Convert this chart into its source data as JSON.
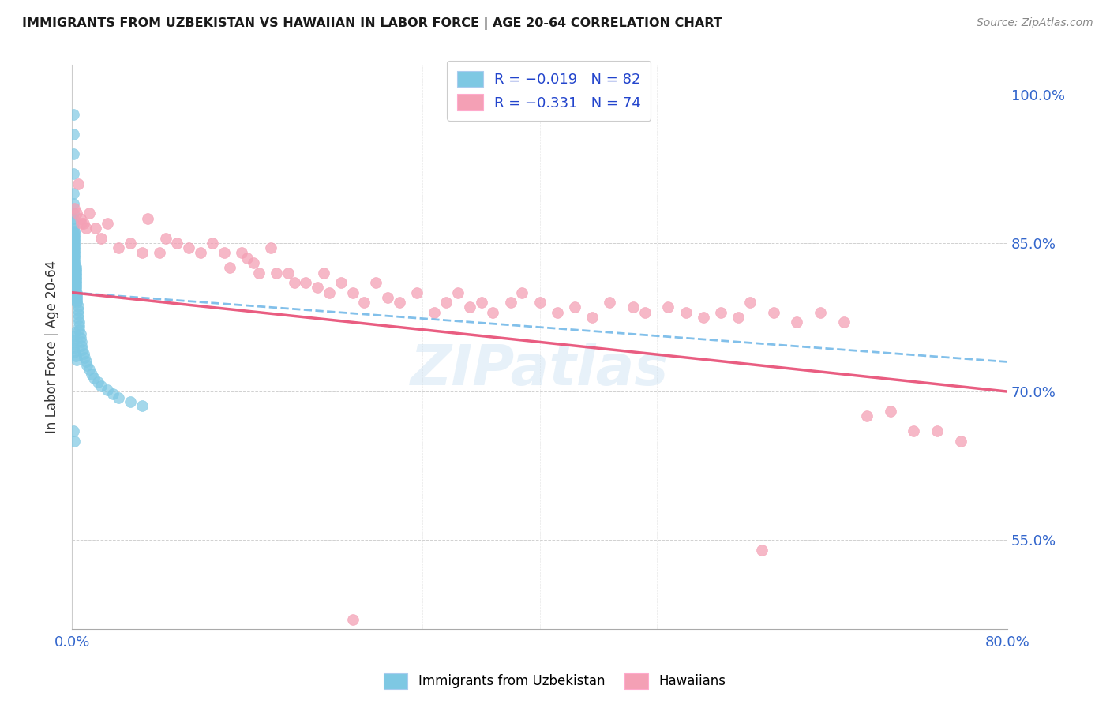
{
  "title": "IMMIGRANTS FROM UZBEKISTAN VS HAWAIIAN IN LABOR FORCE | AGE 20-64 CORRELATION CHART",
  "source": "Source: ZipAtlas.com",
  "ylabel": "In Labor Force | Age 20-64",
  "x_min": 0.0,
  "x_max": 0.8,
  "y_min": 0.46,
  "y_max": 1.03,
  "x_ticks": [
    0.0,
    0.1,
    0.2,
    0.3,
    0.4,
    0.5,
    0.6,
    0.7,
    0.8
  ],
  "x_tick_labels": [
    "0.0%",
    "",
    "",
    "",
    "",
    "",
    "",
    "",
    "80.0%"
  ],
  "y_ticks": [
    0.55,
    0.7,
    0.85,
    1.0
  ],
  "y_tick_labels": [
    "55.0%",
    "70.0%",
    "85.0%",
    "100.0%"
  ],
  "color_blue": "#7ec8e3",
  "color_pink": "#f4a0b5",
  "color_line_blue": "#74b9e8",
  "color_line_pink": "#e8547a",
  "blue_line_start_y": 0.8,
  "blue_line_end_y": 0.73,
  "pink_line_start_y": 0.8,
  "pink_line_end_y": 0.7,
  "uzbek_x": [
    0.001,
    0.001,
    0.001,
    0.001,
    0.001,
    0.001,
    0.001,
    0.001,
    0.001,
    0.001,
    0.002,
    0.002,
    0.002,
    0.002,
    0.002,
    0.002,
    0.002,
    0.002,
    0.002,
    0.002,
    0.002,
    0.002,
    0.002,
    0.002,
    0.002,
    0.002,
    0.002,
    0.002,
    0.003,
    0.003,
    0.003,
    0.003,
    0.003,
    0.003,
    0.003,
    0.003,
    0.003,
    0.003,
    0.003,
    0.003,
    0.004,
    0.004,
    0.004,
    0.004,
    0.004,
    0.004,
    0.005,
    0.005,
    0.005,
    0.005,
    0.006,
    0.006,
    0.006,
    0.007,
    0.007,
    0.008,
    0.008,
    0.009,
    0.01,
    0.011,
    0.012,
    0.013,
    0.015,
    0.017,
    0.019,
    0.022,
    0.025,
    0.03,
    0.035,
    0.04,
    0.05,
    0.06,
    0.002,
    0.001,
    0.001,
    0.001,
    0.001,
    0.002,
    0.003,
    0.004,
    0.001,
    0.002
  ],
  "uzbek_y": [
    0.98,
    0.96,
    0.94,
    0.92,
    0.9,
    0.89,
    0.88,
    0.875,
    0.87,
    0.865,
    0.862,
    0.86,
    0.858,
    0.856,
    0.854,
    0.852,
    0.85,
    0.848,
    0.846,
    0.844,
    0.842,
    0.84,
    0.838,
    0.836,
    0.834,
    0.832,
    0.83,
    0.828,
    0.826,
    0.824,
    0.822,
    0.82,
    0.818,
    0.816,
    0.814,
    0.812,
    0.81,
    0.808,
    0.806,
    0.804,
    0.8,
    0.798,
    0.796,
    0.794,
    0.792,
    0.79,
    0.786,
    0.782,
    0.778,
    0.774,
    0.77,
    0.766,
    0.762,
    0.758,
    0.754,
    0.75,
    0.746,
    0.742,
    0.738,
    0.734,
    0.73,
    0.726,
    0.722,
    0.718,
    0.714,
    0.71,
    0.706,
    0.702,
    0.698,
    0.694,
    0.69,
    0.686,
    0.76,
    0.756,
    0.752,
    0.748,
    0.744,
    0.74,
    0.736,
    0.732,
    0.66,
    0.65
  ],
  "hawaii_x": [
    0.002,
    0.004,
    0.005,
    0.007,
    0.008,
    0.01,
    0.012,
    0.015,
    0.02,
    0.025,
    0.03,
    0.04,
    0.05,
    0.06,
    0.065,
    0.075,
    0.08,
    0.09,
    0.1,
    0.11,
    0.12,
    0.13,
    0.135,
    0.145,
    0.15,
    0.155,
    0.16,
    0.17,
    0.175,
    0.185,
    0.19,
    0.2,
    0.21,
    0.215,
    0.22,
    0.23,
    0.24,
    0.25,
    0.26,
    0.27,
    0.28,
    0.295,
    0.31,
    0.32,
    0.33,
    0.34,
    0.35,
    0.36,
    0.375,
    0.385,
    0.4,
    0.415,
    0.43,
    0.445,
    0.46,
    0.48,
    0.49,
    0.51,
    0.525,
    0.54,
    0.555,
    0.57,
    0.58,
    0.6,
    0.62,
    0.64,
    0.66,
    0.68,
    0.7,
    0.72,
    0.74,
    0.76,
    0.59,
    0.24
  ],
  "hawaii_y": [
    0.885,
    0.88,
    0.91,
    0.875,
    0.87,
    0.87,
    0.865,
    0.88,
    0.865,
    0.855,
    0.87,
    0.845,
    0.85,
    0.84,
    0.875,
    0.84,
    0.855,
    0.85,
    0.845,
    0.84,
    0.85,
    0.84,
    0.825,
    0.84,
    0.835,
    0.83,
    0.82,
    0.845,
    0.82,
    0.82,
    0.81,
    0.81,
    0.805,
    0.82,
    0.8,
    0.81,
    0.8,
    0.79,
    0.81,
    0.795,
    0.79,
    0.8,
    0.78,
    0.79,
    0.8,
    0.785,
    0.79,
    0.78,
    0.79,
    0.8,
    0.79,
    0.78,
    0.785,
    0.775,
    0.79,
    0.785,
    0.78,
    0.785,
    0.78,
    0.775,
    0.78,
    0.775,
    0.79,
    0.78,
    0.77,
    0.78,
    0.77,
    0.675,
    0.68,
    0.66,
    0.66,
    0.65,
    0.54,
    0.47
  ]
}
